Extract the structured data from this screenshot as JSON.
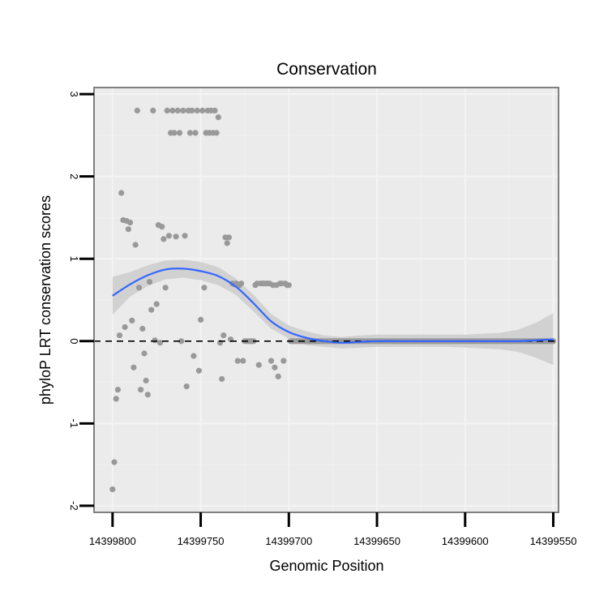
{
  "chart_data": {
    "type": "scatter",
    "title": "Conservation",
    "xlabel": "Genomic Position",
    "ylabel": "phyloP LRT conservation scores",
    "x_reversed": true,
    "xlim": [
      14399810.5,
      14399547.0
    ],
    "ylim": [
      -2.08,
      3.08
    ],
    "xticks": [
      14399800,
      14399750,
      14399700,
      14399650,
      14399600,
      14399550
    ],
    "xtick_labels": [
      "14399800",
      "14399750",
      "14399700",
      "14399650",
      "14399600",
      "14399550"
    ],
    "yticks": [
      -2,
      -1,
      0,
      1,
      2,
      3
    ],
    "ytick_labels": [
      "-2",
      "-1",
      "0",
      "1",
      "2",
      "3"
    ],
    "grid": true,
    "reference_line": {
      "y": 0,
      "style": "dashed"
    },
    "colors": {
      "panel_bg": "#ebebeb",
      "grid_major": "#f4f4f4",
      "grid_minor": "#f0f0f0",
      "points": "#999999",
      "smooth_line": "#3366ff",
      "ribbon": "#cccccc",
      "panel_border": "#7f7f7f"
    },
    "points": [
      {
        "x": 14399800,
        "y": -1.8
      },
      {
        "x": 14399799,
        "y": -1.47
      },
      {
        "x": 14399798,
        "y": -0.7
      },
      {
        "x": 14399797,
        "y": -0.59
      },
      {
        "x": 14399796,
        "y": 0.07
      },
      {
        "x": 14399795,
        "y": 1.8
      },
      {
        "x": 14399794,
        "y": 1.47
      },
      {
        "x": 14399793,
        "y": 0.17
      },
      {
        "x": 14399792,
        "y": 1.46
      },
      {
        "x": 14399791,
        "y": 1.36
      },
      {
        "x": 14399790,
        "y": 1.44
      },
      {
        "x": 14399789,
        "y": 0.25
      },
      {
        "x": 14399788,
        "y": -0.32
      },
      {
        "x": 14399787,
        "y": 1.17
      },
      {
        "x": 14399786,
        "y": 2.8
      },
      {
        "x": 14399785,
        "y": 0.65
      },
      {
        "x": 14399784,
        "y": -0.59
      },
      {
        "x": 14399783,
        "y": 0.15
      },
      {
        "x": 14399782,
        "y": -0.15
      },
      {
        "x": 14399781,
        "y": -0.48
      },
      {
        "x": 14399780,
        "y": -0.65
      },
      {
        "x": 14399779,
        "y": 0.72
      },
      {
        "x": 14399778,
        "y": 0.38
      },
      {
        "x": 14399777,
        "y": 2.8
      },
      {
        "x": 14399776,
        "y": 0.01
      },
      {
        "x": 14399775,
        "y": 0.45
      },
      {
        "x": 14399774,
        "y": 1.41
      },
      {
        "x": 14399773,
        "y": -0.02
      },
      {
        "x": 14399772,
        "y": 1.39
      },
      {
        "x": 14399771,
        "y": 1.24
      },
      {
        "x": 14399770,
        "y": 0.65
      },
      {
        "x": 14399769,
        "y": 2.8
      },
      {
        "x": 14399768,
        "y": 1.28
      },
      {
        "x": 14399767,
        "y": 2.53
      },
      {
        "x": 14399766,
        "y": 2.8
      },
      {
        "x": 14399765,
        "y": 2.53
      },
      {
        "x": 14399764,
        "y": 1.27
      },
      {
        "x": 14399763,
        "y": 2.8
      },
      {
        "x": 14399762,
        "y": 2.53
      },
      {
        "x": 14399761,
        "y": 0.0
      },
      {
        "x": 14399760,
        "y": 2.8
      },
      {
        "x": 14399759,
        "y": 1.28
      },
      {
        "x": 14399758,
        "y": -0.55
      },
      {
        "x": 14399757,
        "y": 2.8
      },
      {
        "x": 14399756,
        "y": 2.53
      },
      {
        "x": 14399755,
        "y": 2.8
      },
      {
        "x": 14399754,
        "y": -0.18
      },
      {
        "x": 14399753,
        "y": 2.53
      },
      {
        "x": 14399752,
        "y": 2.8
      },
      {
        "x": 14399751,
        "y": -0.36
      },
      {
        "x": 14399750,
        "y": 0.26
      },
      {
        "x": 14399749,
        "y": 2.8
      },
      {
        "x": 14399748,
        "y": 0.65
      },
      {
        "x": 14399747,
        "y": 2.53
      },
      {
        "x": 14399746,
        "y": 2.8
      },
      {
        "x": 14399745,
        "y": 2.53
      },
      {
        "x": 14399744,
        "y": 2.8
      },
      {
        "x": 14399743,
        "y": 2.53
      },
      {
        "x": 14399742,
        "y": 2.8
      },
      {
        "x": 14399741,
        "y": 2.53
      },
      {
        "x": 14399740,
        "y": 2.72
      },
      {
        "x": 14399739,
        "y": -0.02
      },
      {
        "x": 14399738,
        "y": -0.46
      },
      {
        "x": 14399737,
        "y": 0.07
      },
      {
        "x": 14399736,
        "y": 1.26
      },
      {
        "x": 14399735,
        "y": 1.19
      },
      {
        "x": 14399734,
        "y": 1.26
      },
      {
        "x": 14399733,
        "y": 0.02
      },
      {
        "x": 14399732,
        "y": 0.7
      },
      {
        "x": 14399731,
        "y": 0.69
      },
      {
        "x": 14399730,
        "y": 0.7
      },
      {
        "x": 14399729,
        "y": -0.24
      },
      {
        "x": 14399728,
        "y": 0.68
      },
      {
        "x": 14399727,
        "y": 0.7
      },
      {
        "x": 14399726,
        "y": -0.24
      },
      {
        "x": 14399725,
        "y": 0.0
      },
      {
        "x": 14399724,
        "y": 0.0
      },
      {
        "x": 14399723,
        "y": 0.0
      },
      {
        "x": 14399722,
        "y": 0.0
      },
      {
        "x": 14399721,
        "y": 0.0
      },
      {
        "x": 14399720,
        "y": 0.0
      },
      {
        "x": 14399719,
        "y": 0.68
      },
      {
        "x": 14399718,
        "y": 0.7
      },
      {
        "x": 14399717,
        "y": -0.29
      },
      {
        "x": 14399716,
        "y": 0.7
      },
      {
        "x": 14399715,
        "y": 0.7
      },
      {
        "x": 14399714,
        "y": 0.7
      },
      {
        "x": 14399713,
        "y": 0.7
      },
      {
        "x": 14399712,
        "y": 0.7
      },
      {
        "x": 14399711,
        "y": 0.7
      },
      {
        "x": 14399710,
        "y": -0.24
      },
      {
        "x": 14399709,
        "y": 0.68
      },
      {
        "x": 14399708,
        "y": -0.32
      },
      {
        "x": 14399707,
        "y": 0.68
      },
      {
        "x": 14399706,
        "y": -0.43
      },
      {
        "x": 14399705,
        "y": 0.7
      },
      {
        "x": 14399704,
        "y": 0.7
      },
      {
        "x": 14399703,
        "y": -0.24
      },
      {
        "x": 14399702,
        "y": 0.7
      },
      {
        "x": 14399701,
        "y": 0.68
      },
      {
        "x": 14399700,
        "y": 0.68
      }
    ],
    "zero_points_range": {
      "from": 14399699,
      "to": 14399550,
      "step": 1,
      "y": 0
    },
    "smooth": {
      "x": [
        14399800,
        14399790,
        14399780,
        14399770,
        14399760,
        14399750,
        14399740,
        14399730,
        14399720,
        14399710,
        14399700,
        14399690,
        14399680,
        14399670,
        14399660,
        14399650,
        14399640,
        14399630,
        14399620,
        14399610,
        14399600,
        14399590,
        14399580,
        14399570,
        14399560,
        14399550
      ],
      "y": [
        0.55,
        0.69,
        0.8,
        0.87,
        0.88,
        0.85,
        0.79,
        0.66,
        0.46,
        0.24,
        0.11,
        0.04,
        0.0,
        -0.02,
        -0.01,
        0.0,
        0.0,
        0.0,
        0.0,
        0.0,
        0.0,
        0.0,
        0.0,
        0.0,
        0.01,
        0.02
      ],
      "ymin": [
        0.32,
        0.54,
        0.67,
        0.75,
        0.77,
        0.74,
        0.68,
        0.56,
        0.36,
        0.15,
        0.03,
        -0.05,
        -0.07,
        -0.09,
        -0.08,
        -0.07,
        -0.07,
        -0.07,
        -0.07,
        -0.07,
        -0.08,
        -0.09,
        -0.1,
        -0.13,
        -0.2,
        -0.29
      ],
      "ymax": [
        0.78,
        0.84,
        0.92,
        0.98,
        0.99,
        0.96,
        0.9,
        0.76,
        0.56,
        0.33,
        0.19,
        0.12,
        0.07,
        0.05,
        0.07,
        0.08,
        0.08,
        0.08,
        0.08,
        0.08,
        0.08,
        0.09,
        0.1,
        0.14,
        0.22,
        0.34
      ]
    }
  }
}
